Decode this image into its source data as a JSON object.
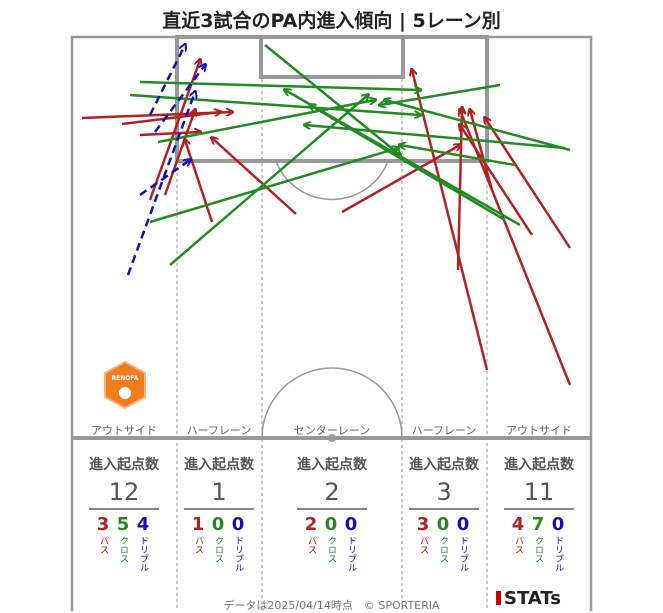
{
  "title": "直近3試合のPA内進入傾向 | 5レーン別",
  "lanes": [
    {
      "name": "アウトサイド",
      "total": "12",
      "pass": "3",
      "cross": "5",
      "dribble": "4"
    },
    {
      "name": "ハーフレーン",
      "total": "1",
      "pass": "1",
      "cross": "0",
      "dribble": "0"
    },
    {
      "name": "センターレーン",
      "total": "2",
      "pass": "2",
      "cross": "0",
      "dribble": "0"
    },
    {
      "name": "ハーフレーン",
      "total": "3",
      "pass": "3",
      "cross": "0",
      "dribble": "0"
    },
    {
      "name": "アウトサイド",
      "total": "11",
      "pass": "4",
      "cross": "7",
      "dribble": "0"
    }
  ],
  "stat_header": "進入起点数",
  "labels": {
    "pass": "パス",
    "cross": "クロス",
    "dribble": "ドリブル"
  },
  "team_logo_text": "RENOFA",
  "footer": "データは2025/04/14時点　© SPORTERIA",
  "brand": "STATs",
  "colors": {
    "pass": "#b22222",
    "cross": "#228b22",
    "dribble": "#1010c0"
  }
}
